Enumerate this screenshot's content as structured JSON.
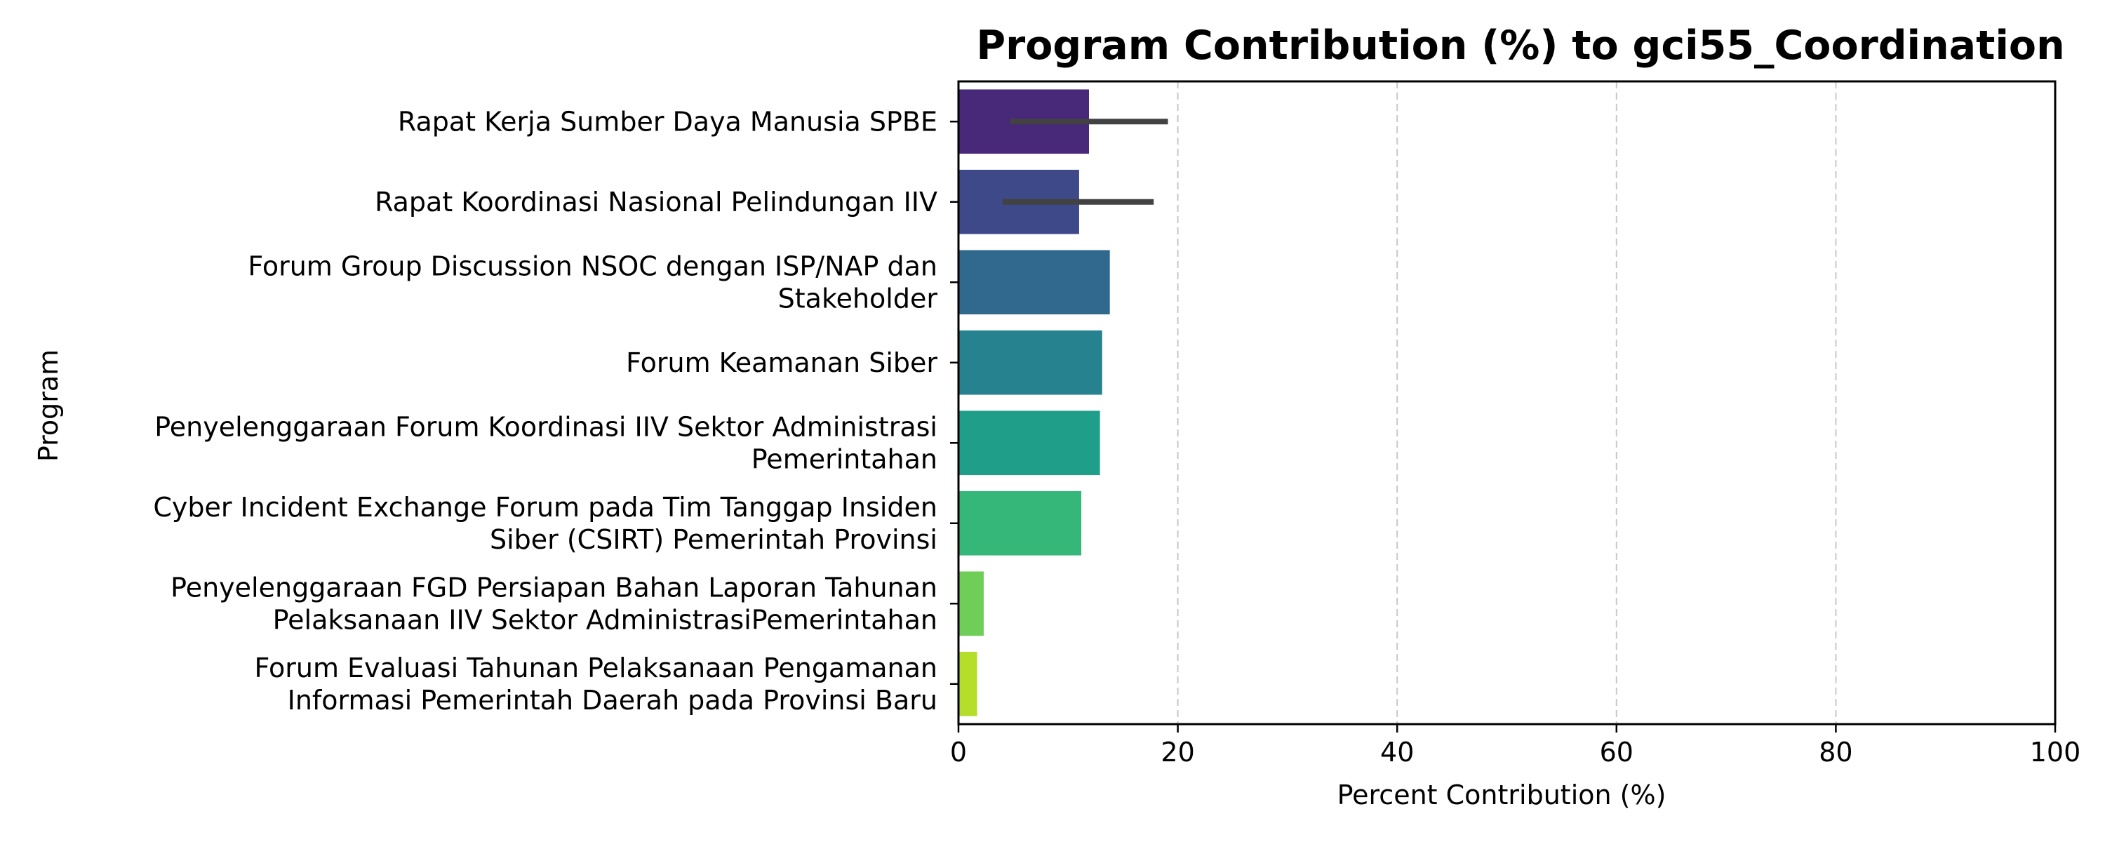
{
  "chart_data": {
    "type": "bar",
    "orientation": "horizontal",
    "title": "Program Contribution (%) to gci55_Coordination",
    "xlabel": "Percent Contribution (%)",
    "ylabel": "Program",
    "xlim": [
      0,
      100
    ],
    "xticks": [
      "0",
      "20",
      "40",
      "60",
      "80",
      "100"
    ],
    "grid": "x-dashed",
    "categories": [
      [
        "Rapat Kerja Sumber Daya Manusia SPBE"
      ],
      [
        "Rapat Koordinasi Nasional Pelindungan IIV"
      ],
      [
        "Forum Group Discussion NSOC dengan ISP/NAP dan",
        "Stakeholder"
      ],
      [
        "Forum Keamanan Siber"
      ],
      [
        "Penyelenggaraan Forum Koordinasi IIV Sektor Administrasi",
        "Pemerintahan"
      ],
      [
        "Cyber Incident Exchange Forum pada Tim Tanggap Insiden",
        "Siber (CSIRT) Pemerintah Provinsi"
      ],
      [
        "Penyelenggaraan FGD Persiapan Bahan Laporan Tahunan",
        "Pelaksanaan IIV Sektor AdministrasiPemerintahan"
      ],
      [
        "Forum Evaluasi Tahunan Pelaksanaan Pengamanan",
        "Informasi Pemerintah Daerah pada Provinsi Baru"
      ]
    ],
    "values": [
      11.9,
      11.0,
      13.8,
      13.1,
      12.9,
      11.2,
      2.3,
      1.7
    ],
    "error_bars": [
      [
        4.7,
        19.1
      ],
      [
        4.0,
        17.8
      ],
      null,
      null,
      null,
      null,
      null,
      null
    ],
    "colors": [
      "#482878",
      "#3e4989",
      "#31688e",
      "#26828e",
      "#1f9e89",
      "#35b779",
      "#6ece58",
      "#b5de2b"
    ],
    "errorbar_color": "#424242"
  }
}
